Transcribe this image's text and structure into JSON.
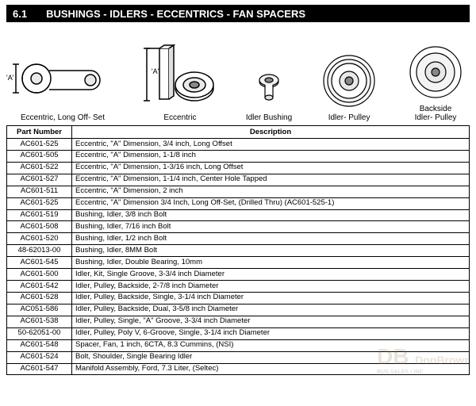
{
  "header": {
    "section_num": "6.1",
    "title": "BUSHINGS - IDLERS - ECCENTRICS - FAN SPACERS"
  },
  "figures": [
    {
      "name": "eccentric-long-offset",
      "label": "Eccentric, Long Off- Set",
      "dim_label": "'A'"
    },
    {
      "name": "eccentric",
      "label": "Eccentric",
      "dim_label": "'A'"
    },
    {
      "name": "idler-bushing",
      "label": "Idler Bushing"
    },
    {
      "name": "idler-pulley",
      "label": "Idler- Pulley"
    },
    {
      "name": "backside-idler-pulley",
      "label": "Backside\nIdler- Pulley"
    }
  ],
  "table": {
    "columns": [
      "Part Number",
      "Description"
    ],
    "rows": [
      [
        "AC601-525",
        "Eccentric, \"A\" Dimension, 3/4 inch, Long Offset"
      ],
      [
        "AC601-505",
        "Eccentric, \"A\" Dimension, 1-1/8 inch"
      ],
      [
        "AC601-522",
        "Eccentric, \"A\" Dimension, 1-3/16 inch, Long Offset"
      ],
      [
        "AC601-527",
        "Eccentric, \"A\" Dimension, 1-1/4 inch, Center Hole Tapped"
      ],
      [
        "AC601-511",
        "Eccentric, \"A\" Dimension, 2 inch"
      ],
      [
        "AC601-525",
        "Eccentric, \"A\" Dimension 3/4 Inch, Long Off-Set, (Drilled Thru) (AC601-525-1)"
      ],
      [
        "AC601-519",
        "Bushing, Idler, 3/8 inch Bolt"
      ],
      [
        "AC601-508",
        "Bushing, Idler, 7/16 inch Bolt"
      ],
      [
        "AC601-520",
        "Bushing, Idler, 1/2 inch Bolt"
      ],
      [
        "48-62013-00",
        "Bushing, Idler, 8MM Bolt"
      ],
      [
        "AC601-545",
        "Bushing, Idler, Double Bearing, 10mm"
      ],
      [
        "AC601-500",
        "Idler, Kit, Single Groove, 3-3/4 inch Diameter"
      ],
      [
        "AC601-542",
        "Idler, Pulley, Backside, 2-7/8 inch Diameter"
      ],
      [
        "AC601-528",
        "Idler, Pulley, Backside, Single, 3-1/4 inch Diameter"
      ],
      [
        "AC051-586",
        "Idler, Pulley, Backside, Dual, 3-5/8 inch Diameter"
      ],
      [
        "AC601-538",
        "Idler, Pulley, Single, \"A\" Groove, 3-3/4 inch Diameter"
      ],
      [
        "50-62051-00",
        "Idler, Pulley, Poly V, 6-Groove, Single, 3-1/4 inch Diameter"
      ],
      [
        "AC601-548",
        "Spacer, Fan, 1 inch, 6CTA, 8.3 Cummins, (NSI)"
      ],
      [
        "AC601-524",
        "Bolt, Shoulder, Single Bearing Idler"
      ],
      [
        "AC601-547",
        "Manifold Assembly, Ford, 7.3 Liter, (Seltec)"
      ]
    ]
  },
  "watermark": {
    "logo": "DB",
    "text1": "DonBrown",
    "text2": "BUS SALES • INC"
  },
  "colors": {
    "header_bg": "#000000",
    "header_fg": "#ffffff",
    "border": "#000000",
    "bg": "#ffffff",
    "wm": "#8a6a3a"
  }
}
